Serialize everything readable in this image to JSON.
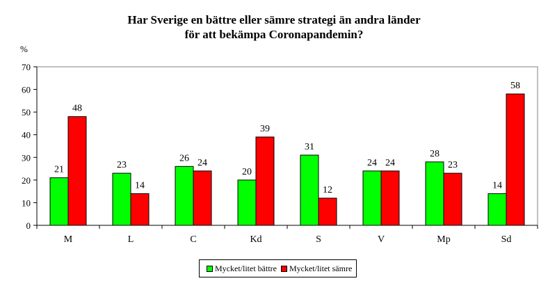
{
  "chart_data": {
    "type": "bar",
    "title_line1": "Har Sverige en bättre eller sämre strategi än andra länder",
    "title_line2": "för att bekämpa Coronapandemin?",
    "ylabel": "%",
    "ylim": [
      0,
      70
    ],
    "yticks": [
      0,
      10,
      20,
      30,
      40,
      50,
      60,
      70
    ],
    "grid": false,
    "legend_position": "bottom",
    "categories": [
      "M",
      "L",
      "C",
      "Kd",
      "S",
      "V",
      "Mp",
      "Sd"
    ],
    "series": [
      {
        "name": "Mycket/litet bättre",
        "color": "#00ff00",
        "values": [
          21,
          23,
          26,
          20,
          31,
          24,
          28,
          14
        ]
      },
      {
        "name": "Mycket/litet sämre",
        "color": "#ff0000",
        "values": [
          48,
          14,
          24,
          39,
          12,
          24,
          23,
          58
        ]
      }
    ]
  }
}
